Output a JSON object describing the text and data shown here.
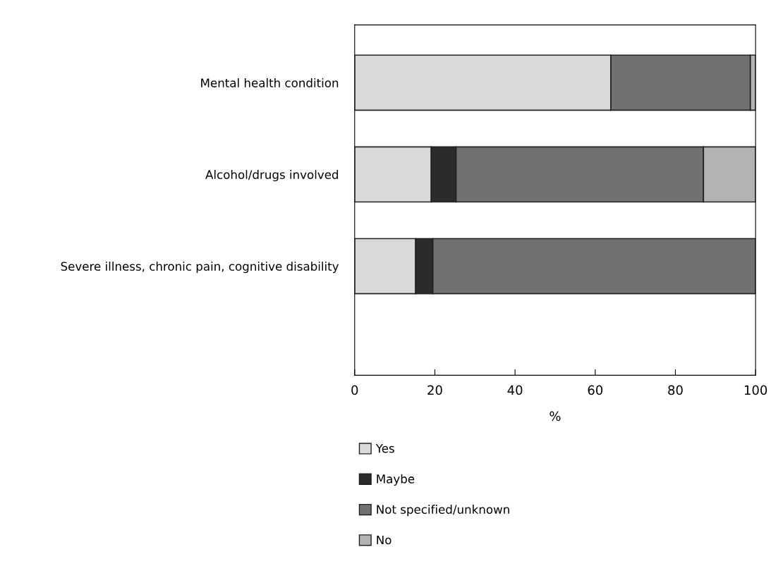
{
  "chart_data": {
    "type": "bar",
    "orientation": "horizontal",
    "stacked": true,
    "xlabel": "%",
    "categories": [
      "Mental health condition",
      "Alcohol/drugs involved",
      "Severe illness, chronic pain, cognitive disability"
    ],
    "series": [
      {
        "name": "Yes",
        "color": "#d9d9d9",
        "values": [
          63.9,
          19.1,
          15.2
        ]
      },
      {
        "name": "Maybe",
        "color": "#2b2b2b",
        "values": [
          null,
          6.2,
          4.3
        ]
      },
      {
        "name": "Not specified/unknown",
        "color": "#717171",
        "values": [
          34.8,
          61.7,
          80.5
        ]
      },
      {
        "name": "No",
        "color": "#b3b3b3",
        "values": [
          1.3,
          13.0,
          null
        ]
      }
    ],
    "xlim": [
      0,
      100
    ],
    "xticks": [
      0,
      20,
      40,
      60,
      80,
      100
    ],
    "grid": false,
    "legend": "bottom"
  }
}
